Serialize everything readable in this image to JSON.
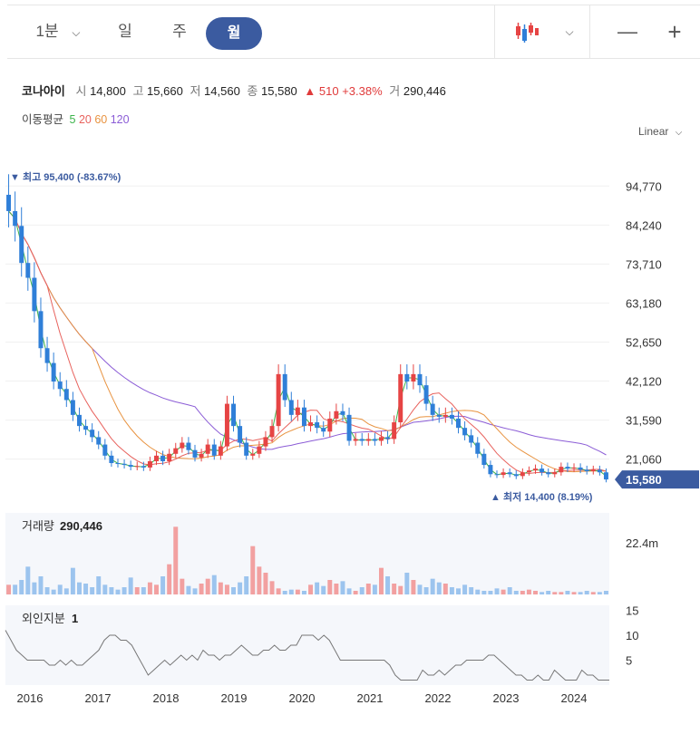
{
  "toolbar": {
    "interval_selected": "1분",
    "tabs": [
      "일",
      "주",
      "월"
    ],
    "active_tab": "월",
    "chart_type_icon": "candlestick-icon",
    "minus": "—",
    "plus": "+"
  },
  "stock": {
    "name": "코나아이",
    "open_label": "시",
    "open": "14,800",
    "high_label": "고",
    "high": "15,660",
    "low_label": "저",
    "low": "14,560",
    "close_label": "종",
    "close": "15,580",
    "change": "▲ 510",
    "change_pct": "+3.38%",
    "volume_label": "거",
    "volume": "290,446"
  },
  "moving_average": {
    "label": "이동평균",
    "periods": [
      {
        "period": "5",
        "color": "#3cb44b"
      },
      {
        "period": "20",
        "color": "#e8625d"
      },
      {
        "period": "60",
        "color": "#e89340"
      },
      {
        "period": "120",
        "color": "#8b5cd6"
      }
    ]
  },
  "scale_mode": "Linear",
  "colors": {
    "up": "#e64444",
    "down": "#2f7fd8",
    "accent": "#3b5ba0"
  },
  "chart_data": {
    "type": "candlestick",
    "price_axis": {
      "ticks": [
        94770,
        84240,
        73710,
        63180,
        52650,
        42120,
        31590,
        21060
      ],
      "tick_labels": [
        "94,770",
        "84,240",
        "73,710",
        "63,180",
        "52,650",
        "42,120",
        "31,590",
        "21,060"
      ],
      "ylim": [
        9000,
        98500
      ]
    },
    "x_axis": {
      "labels": [
        "2016",
        "2017",
        "2018",
        "2019",
        "2020",
        "2021",
        "2022",
        "2023",
        "2024"
      ]
    },
    "high_marker": {
      "text": "최고 95,400 (-83.67%)",
      "value": 95400
    },
    "low_marker": {
      "text": "최저 14,400 (8.19%)",
      "value": 14400
    },
    "current_price": {
      "text": "15,580",
      "value": 15580
    },
    "closes": [
      88000,
      84000,
      74000,
      70000,
      61000,
      51000,
      47000,
      42000,
      40000,
      37000,
      33000,
      30000,
      29000,
      27000,
      25000,
      22000,
      20000,
      19800,
      19500,
      19000,
      19200,
      18800,
      20500,
      22000,
      20500,
      22500,
      24000,
      25500,
      23500,
      21500,
      22500,
      25000,
      22000,
      24500,
      36000,
      30000,
      25500,
      22000,
      22500,
      24500,
      27000,
      30000,
      44000,
      37000,
      33000,
      35000,
      30000,
      31000,
      29500,
      28500,
      32000,
      34000,
      33000,
      26000,
      26500,
      26000,
      26500,
      26000,
      27000,
      26500,
      31000,
      44000,
      42000,
      44000,
      41000,
      36000,
      33000,
      32500,
      33000,
      32000,
      29500,
      27500,
      25500,
      22500,
      19500,
      17000,
      16800,
      17500,
      17000,
      16500,
      17500,
      18000,
      18500,
      17500,
      17000,
      17500,
      19000,
      18500,
      18800,
      18200,
      17800,
      18200,
      17500,
      15580
    ],
    "volume": {
      "label": "거래량",
      "value": "290,446",
      "axis_label": "22.4m",
      "bars": [
        0.8,
        0.8,
        1.2,
        2.3,
        1,
        1.5,
        0.6,
        0.4,
        0.8,
        0.5,
        2.2,
        1,
        0.9,
        0.6,
        1.5,
        0.8,
        0.6,
        0.4,
        0.6,
        1.4,
        0.6,
        0.6,
        1,
        0.8,
        1.5,
        2.5,
        5.6,
        1.3,
        0.7,
        0.5,
        0.9,
        1.3,
        1.6,
        1,
        0.8,
        0.6,
        1,
        1.5,
        4,
        2.3,
        1.8,
        1.1,
        0.5,
        0.3,
        0.4,
        0.4,
        0.3,
        0.8,
        1,
        0.7,
        1.2,
        0.9,
        1.1,
        0.5,
        0.3,
        0.6,
        0.9,
        0.8,
        2.2,
        1.5,
        0.9,
        0.7,
        1.8,
        1.2,
        0.8,
        0.6,
        1.3,
        1,
        0.9,
        0.6,
        0.5,
        0.8,
        0.6,
        0.4,
        0.3,
        0.3,
        0.5,
        0.4,
        0.6,
        0.3,
        0.3,
        0.4,
        0.3,
        0.2,
        0.3,
        0.2,
        0.2,
        0.3,
        0.2,
        0.2,
        0.3,
        0.2,
        0.2,
        0.3
      ]
    },
    "foreign_ownership": {
      "label": "외인지분",
      "value": "1",
      "ticks": [
        15,
        10,
        5
      ],
      "tick_labels": [
        "15",
        "10",
        "5"
      ],
      "values": [
        11,
        9,
        7,
        6,
        5,
        5,
        5,
        5,
        4,
        4,
        5,
        4,
        5,
        4,
        4,
        5,
        6,
        7,
        9,
        10,
        10,
        9,
        9,
        8,
        6,
        4,
        2,
        3,
        4,
        5,
        4,
        5,
        6,
        5,
        6,
        5,
        7,
        6,
        6,
        5,
        6,
        6,
        7,
        8,
        7,
        6,
        6,
        7,
        7,
        8,
        7,
        7,
        8,
        8,
        10,
        10,
        10,
        9,
        10,
        9,
        7,
        5,
        5,
        5,
        5,
        5,
        5,
        5,
        5,
        5,
        4,
        2,
        1,
        1,
        1,
        1,
        3,
        2,
        2,
        3,
        2,
        3,
        4,
        4,
        5,
        5,
        5,
        5,
        6,
        6,
        5,
        4,
        3,
        2,
        2,
        1,
        1,
        2,
        1,
        1,
        3,
        2,
        1,
        1,
        1,
        3,
        2,
        2,
        1,
        1,
        1
      ]
    }
  }
}
